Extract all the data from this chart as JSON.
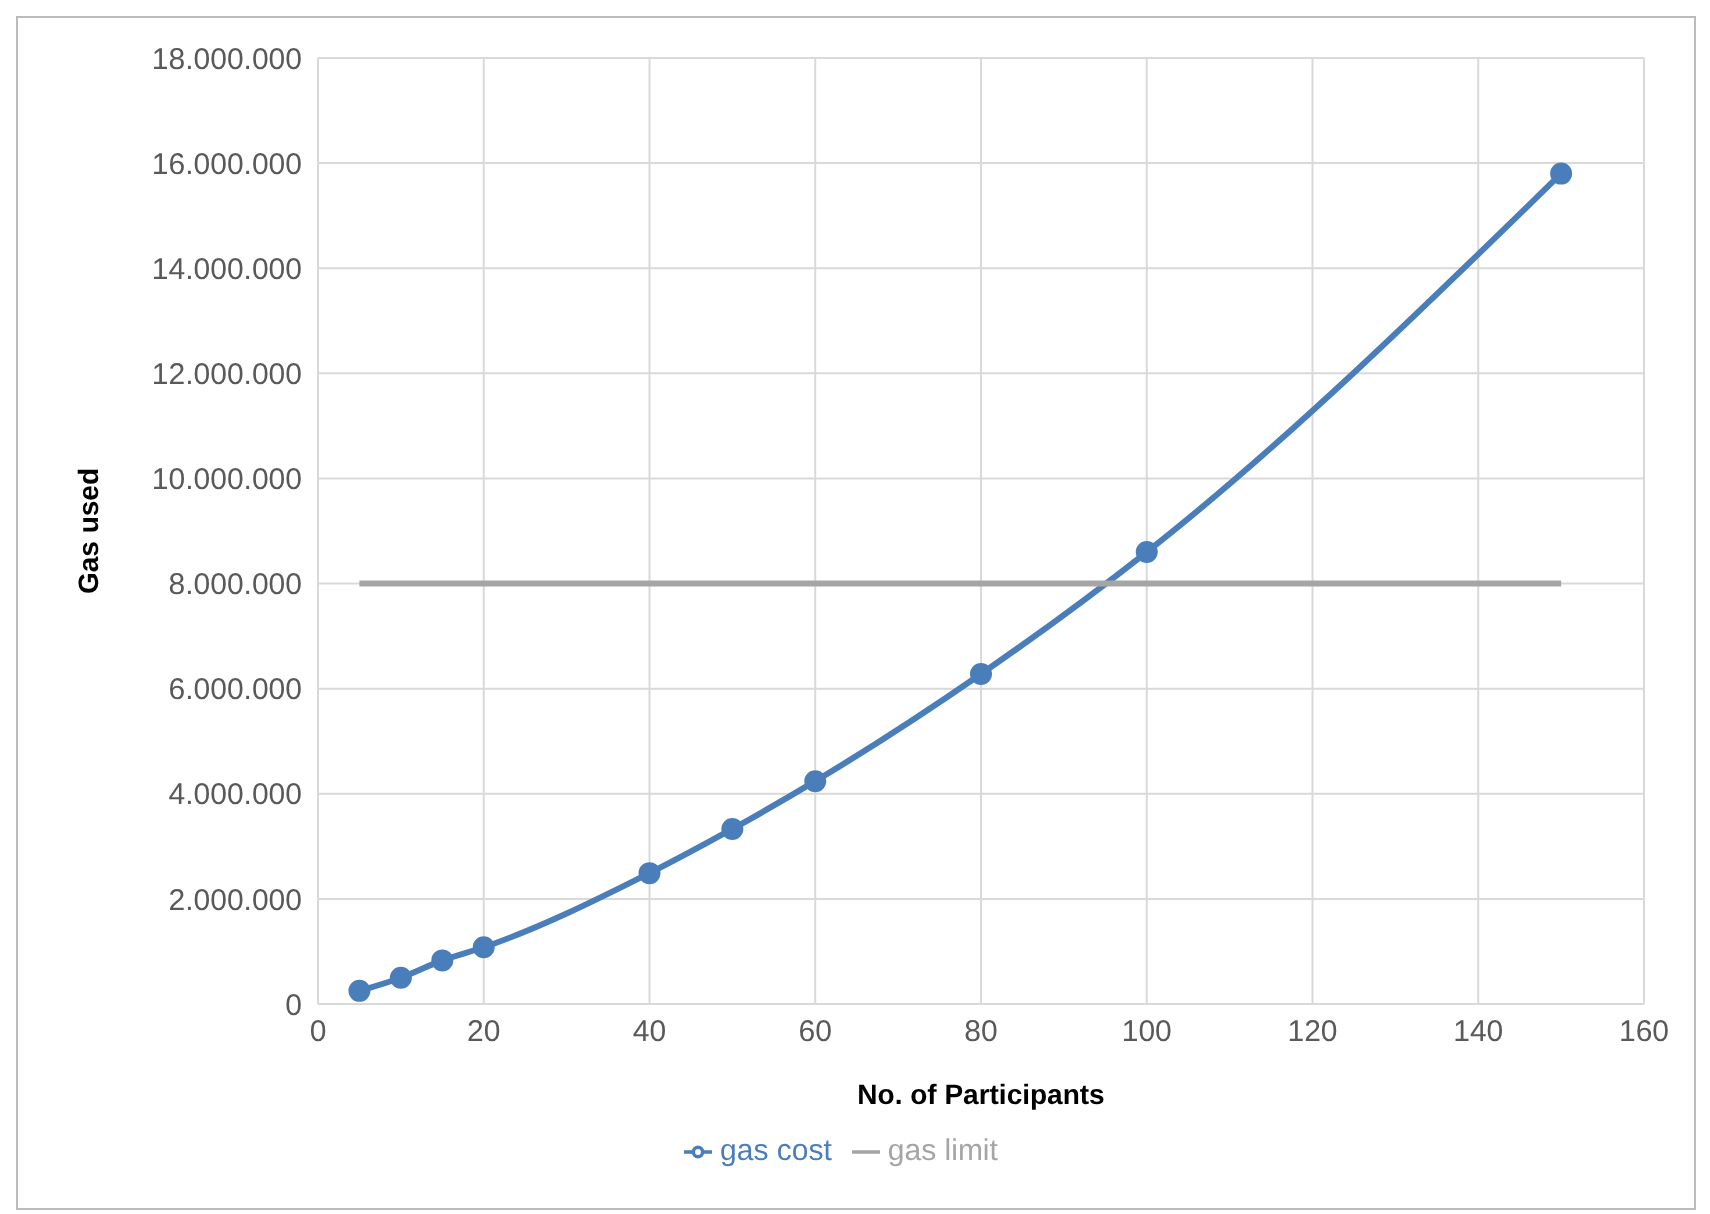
{
  "chart_data": {
    "type": "line",
    "xlabel": "No. of Participants",
    "ylabel": "Gas used",
    "xlim": [
      0,
      160
    ],
    "xticks": [
      0,
      20,
      40,
      60,
      80,
      100,
      120,
      140,
      160
    ],
    "ylim": [
      0,
      18000000
    ],
    "yticks": [
      {
        "value": 0,
        "label": "0"
      },
      {
        "value": 2000000,
        "label": "2.000.000"
      },
      {
        "value": 4000000,
        "label": "4.000.000"
      },
      {
        "value": 6000000,
        "label": "6.000.000"
      },
      {
        "value": 8000000,
        "label": "8.000.000"
      },
      {
        "value": 10000000,
        "label": "10.000.000"
      },
      {
        "value": 12000000,
        "label": "12.000.000"
      },
      {
        "value": 14000000,
        "label": "14.000.000"
      },
      {
        "value": 16000000,
        "label": "16.000.000"
      },
      {
        "value": 18000000,
        "label": "18.000.000"
      }
    ],
    "grid": true,
    "legend": "bottom",
    "marker": "circle",
    "series": [
      {
        "name": "gas cost",
        "color": "#4a7ebb",
        "x": [
          5,
          10,
          15,
          20,
          40,
          50,
          60,
          80,
          100,
          150
        ],
        "values": [
          250000,
          500000,
          830000,
          1080000,
          2490000,
          3330000,
          4240000,
          6280000,
          8600000,
          15800000
        ]
      },
      {
        "name": "gas limit",
        "color": "#a5a5a5",
        "marker": "none",
        "x": [
          5,
          150
        ],
        "values": [
          8000000,
          8000000
        ]
      }
    ]
  }
}
